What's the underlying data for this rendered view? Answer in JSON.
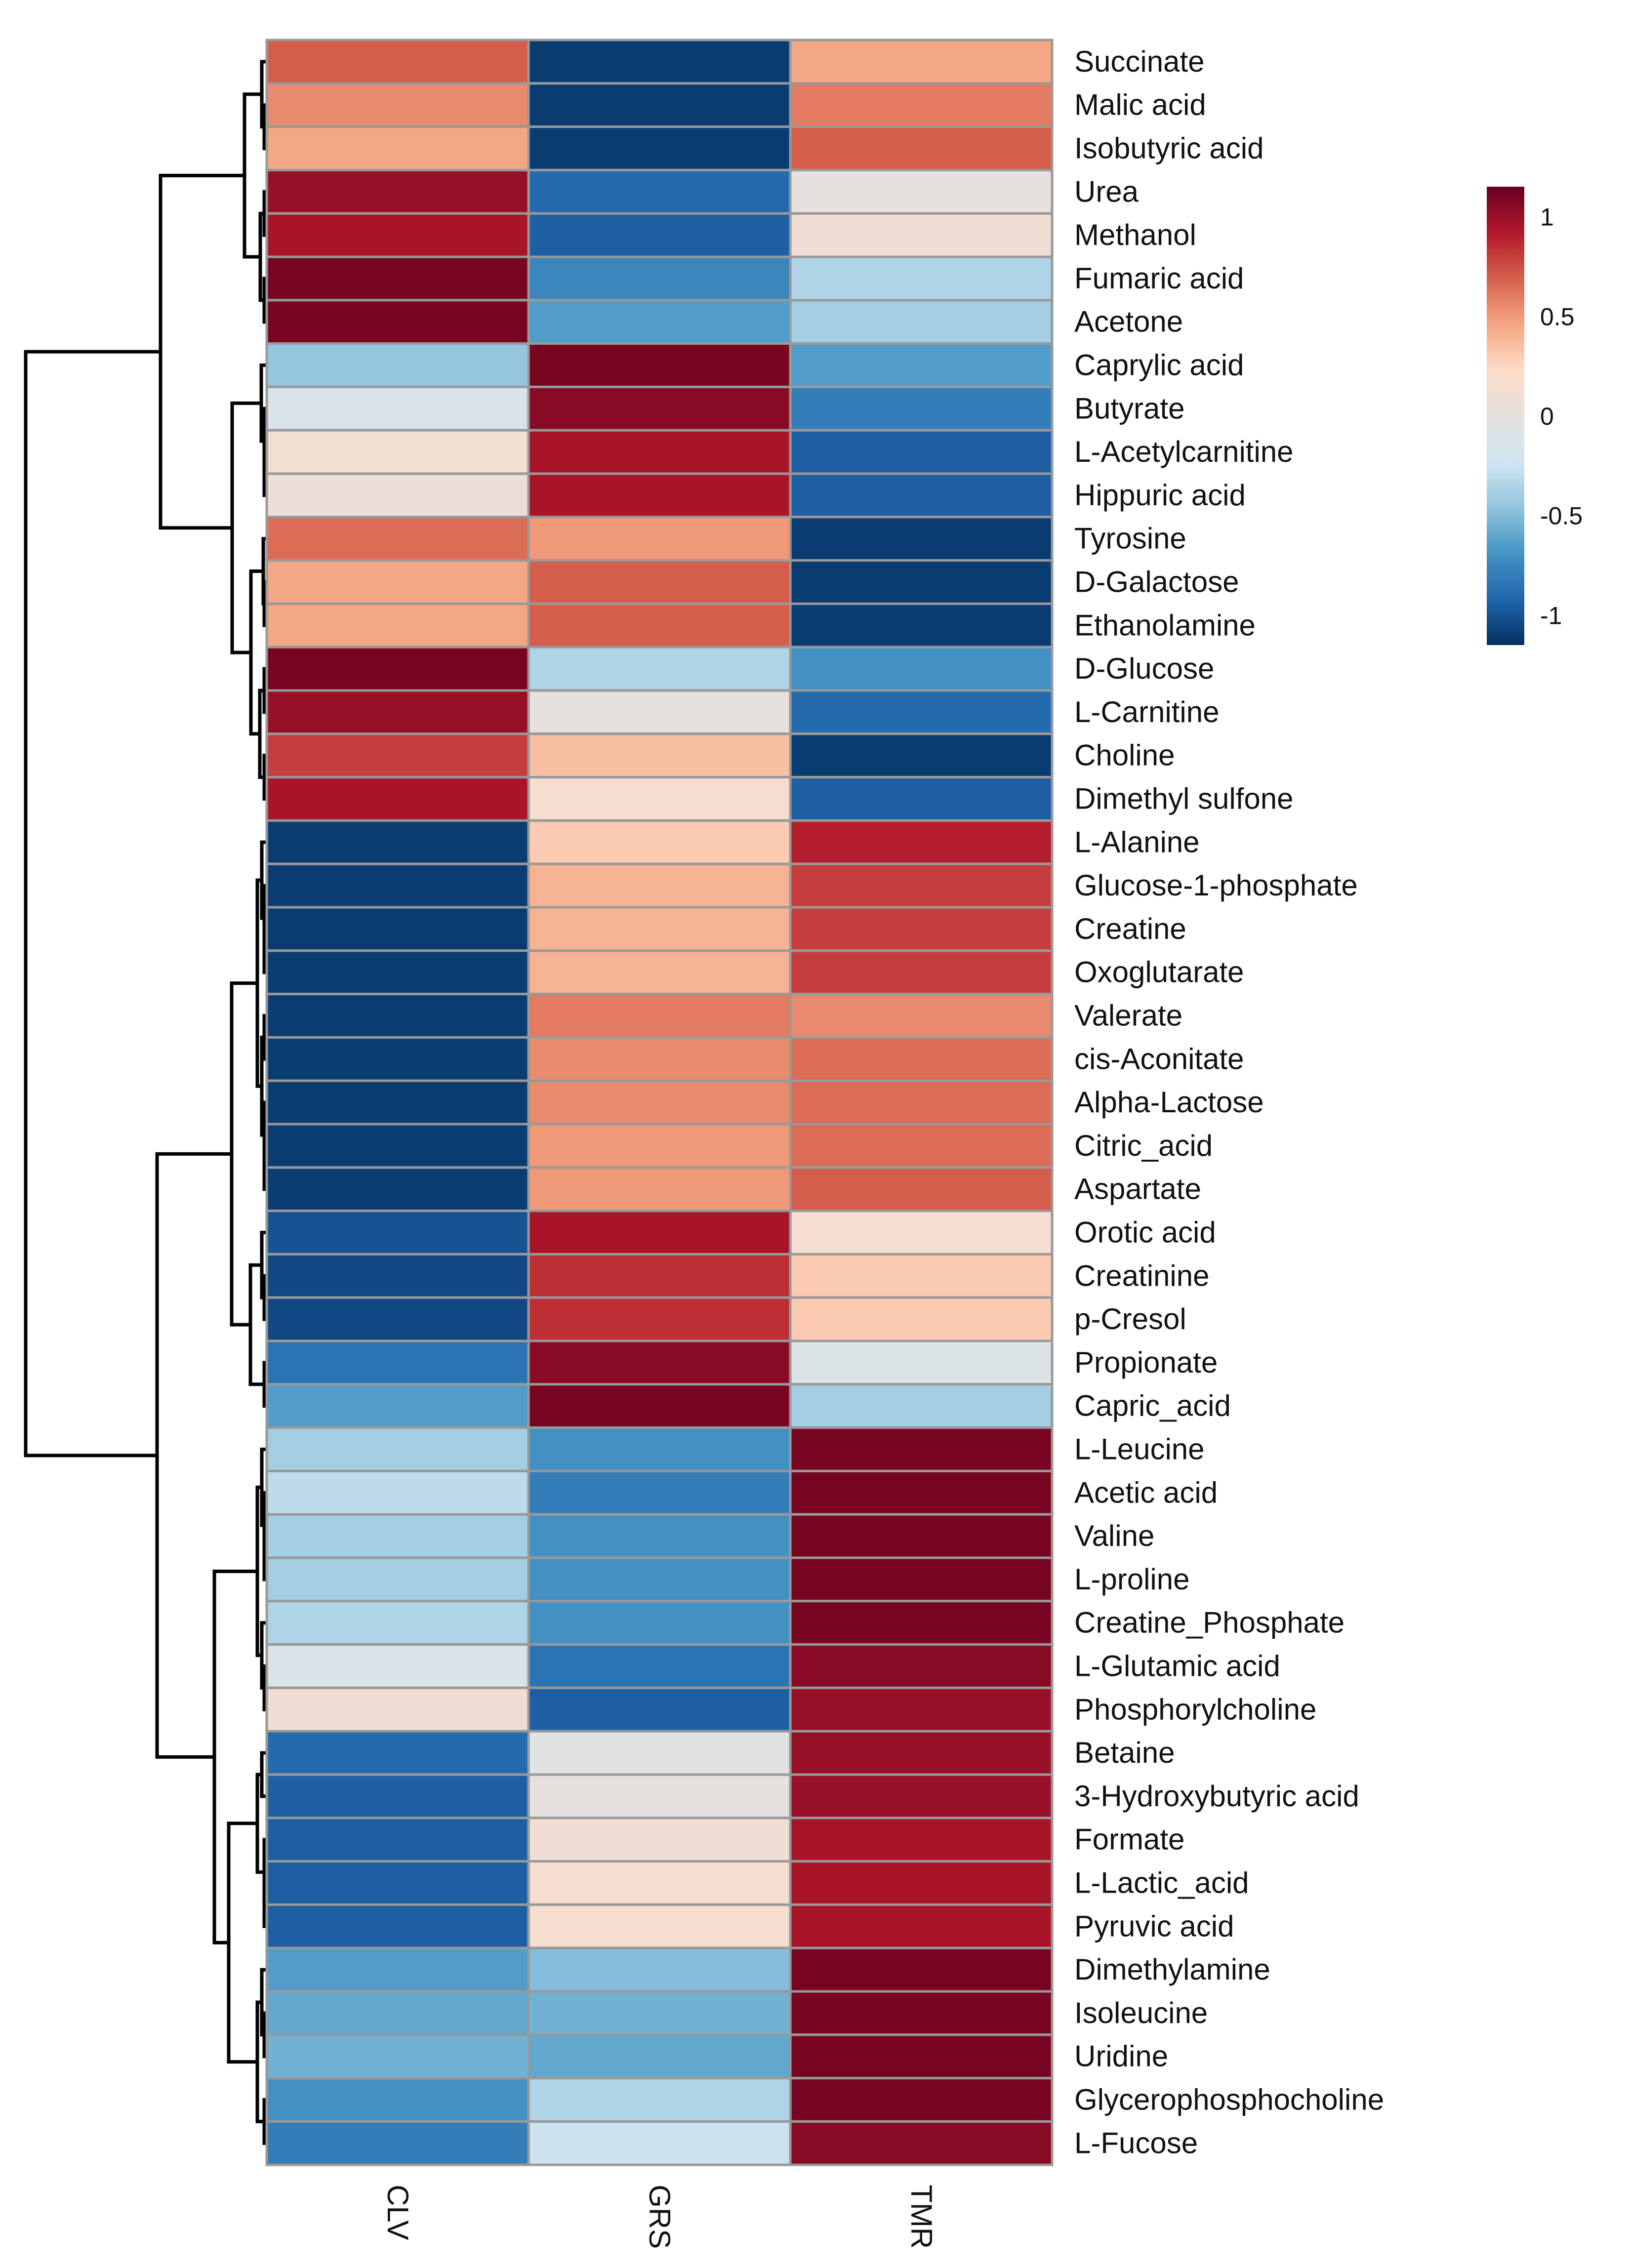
{
  "chart_data": {
    "type": "heatmap",
    "title": "",
    "columns": [
      "CLV",
      "GRS",
      "TMR"
    ],
    "rows": [
      "Succinate",
      "Malic acid",
      "Isobutyric  acid",
      "Urea",
      "Methanol",
      "Fumaric  acid",
      "Acetone",
      "Caprylic  acid",
      "Butyrate",
      "L-Acetylcarnitine",
      "Hippuric  acid",
      "Tyrosine",
      "D-Galactose",
      "Ethanolamine",
      "D-Glucose",
      "L-Carnitine",
      "Choline",
      "Dimethyl  sulfone",
      "L-Alanine",
      "Glucose-1-phosphate",
      "Creatine",
      "Oxoglutarate",
      "Valerate",
      "cis-Aconitate",
      "Alpha-Lactose",
      "Citric_acid",
      "Aspartate",
      "Orotic  acid",
      "Creatinine",
      "p-Cresol",
      "Propionate",
      "Capric_acid",
      "L-Leucine",
      "Acetic acid",
      "Valine",
      "L-proline",
      "Creatine_Phosphate",
      "L-Glutamic acid",
      "Phosphorylcholine",
      "Betaine",
      "3-Hydroxybutyric  acid",
      "Formate",
      "L-Lactic_acid",
      "Pyruvic  acid",
      "Dimethylamine",
      "Isoleucine",
      "Uridine",
      "Glycerophosphocholine",
      "L-Fucose"
    ],
    "values": [
      [
        0.7,
        -1.1,
        0.45
      ],
      [
        0.55,
        -1.1,
        0.6
      ],
      [
        0.45,
        -1.1,
        0.7
      ],
      [
        1.0,
        -0.9,
        0.0
      ],
      [
        0.95,
        -0.95,
        0.1
      ],
      [
        1.1,
        -0.75,
        -0.35
      ],
      [
        1.1,
        -0.65,
        -0.4
      ],
      [
        -0.45,
        1.1,
        -0.65
      ],
      [
        -0.15,
        1.05,
        -0.8
      ],
      [
        0.12,
        0.95,
        -0.95
      ],
      [
        0.07,
        0.95,
        -0.95
      ],
      [
        0.65,
        0.5,
        -1.1
      ],
      [
        0.45,
        0.7,
        -1.1
      ],
      [
        0.45,
        0.7,
        -1.1
      ],
      [
        1.1,
        -0.35,
        -0.7
      ],
      [
        1.0,
        0.0,
        -0.9
      ],
      [
        0.8,
        0.35,
        -1.1
      ],
      [
        0.95,
        0.15,
        -0.95
      ],
      [
        -1.1,
        0.3,
        0.9
      ],
      [
        -1.1,
        0.4,
        0.8
      ],
      [
        -1.1,
        0.4,
        0.8
      ],
      [
        -1.1,
        0.4,
        0.8
      ],
      [
        -1.1,
        0.6,
        0.55
      ],
      [
        -1.1,
        0.55,
        0.65
      ],
      [
        -1.1,
        0.55,
        0.65
      ],
      [
        -1.1,
        0.5,
        0.65
      ],
      [
        -1.1,
        0.5,
        0.7
      ],
      [
        -1.0,
        0.95,
        0.15
      ],
      [
        -1.05,
        0.85,
        0.3
      ],
      [
        -1.05,
        0.85,
        0.3
      ],
      [
        -0.85,
        1.05,
        -0.12
      ],
      [
        -0.65,
        1.1,
        -0.4
      ],
      [
        -0.4,
        -0.7,
        1.1
      ],
      [
        -0.3,
        -0.8,
        1.1
      ],
      [
        -0.4,
        -0.7,
        1.1
      ],
      [
        -0.4,
        -0.7,
        1.1
      ],
      [
        -0.35,
        -0.7,
        1.1
      ],
      [
        -0.15,
        -0.85,
        1.05
      ],
      [
        0.1,
        -0.95,
        1.0
      ],
      [
        -0.9,
        -0.05,
        1.0
      ],
      [
        -0.95,
        0.0,
        1.0
      ],
      [
        -0.95,
        0.1,
        0.95
      ],
      [
        -0.95,
        0.15,
        0.95
      ],
      [
        -0.95,
        0.15,
        0.95
      ],
      [
        -0.65,
        -0.5,
        1.1
      ],
      [
        -0.6,
        -0.55,
        1.1
      ],
      [
        -0.55,
        -0.6,
        1.1
      ],
      [
        -0.7,
        -0.35,
        1.1
      ],
      [
        -0.8,
        -0.25,
        1.05
      ]
    ],
    "color_range": [
      -1.15,
      1.15
    ],
    "legend": {
      "ticks": [
        1,
        0.5,
        0,
        -0.5,
        -1
      ],
      "tick_labels": [
        "1",
        "0.5",
        "0",
        "-0.5",
        "-1"
      ],
      "placement": "right"
    },
    "colormap": [
      "#053061",
      "#2166ac",
      "#4393c3",
      "#92c5de",
      "#d1e5f0",
      "#e6e1de",
      "#fddbc7",
      "#f4a582",
      "#d6604d",
      "#b2182b",
      "#67001f"
    ],
    "row_dendrogram": true
  }
}
